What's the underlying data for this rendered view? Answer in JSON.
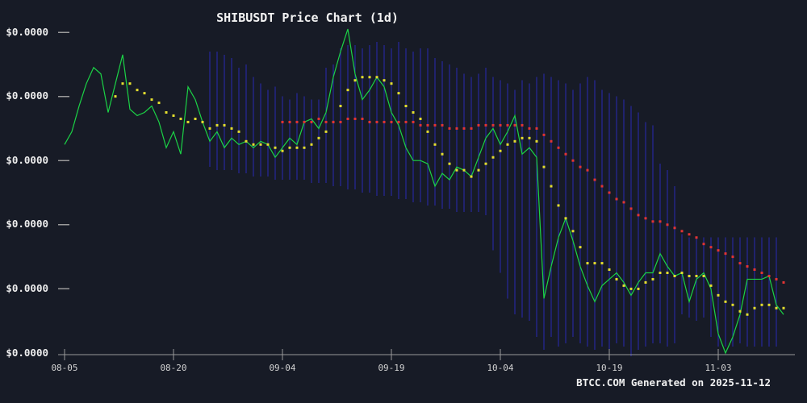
{
  "page": {
    "footer": "BTCC.COM Generated on 2025-11-12"
  },
  "colors": {
    "background": "#171b26",
    "price_line": "#1bd346",
    "ma_fast_dots": "#e3de2f",
    "ma_slow_dots": "#e23434",
    "volume_bars": "#2a2ab4",
    "axis": "#9a9a9a",
    "tick_text": "#d2d2d2",
    "text": "#f2f2f2"
  },
  "chart_data": {
    "type": "line",
    "title": "SHIBUSDT Price Chart (1d)",
    "symbol": "SHIBUSDT",
    "interval": "1d",
    "value_scale": "percent-of-plot-height (0 = bottom axis tick, 100 = top tick; all price tick labels render as $0.0000)",
    "x_axis": {
      "tick_labels": [
        "08-05",
        "08-20",
        "09-04",
        "09-19",
        "10-04",
        "10-19",
        "11-03"
      ],
      "points_per_tick": 15,
      "n_points": 100
    },
    "y_axis": {
      "tick_labels": [
        "$0.0000",
        "$0.0000",
        "$0.0000",
        "$0.0000",
        "$0.0000",
        "$0.0000"
      ],
      "tick_values": [
        100,
        80,
        60,
        40,
        20,
        0
      ],
      "unit": "USD"
    },
    "series": [
      {
        "name": "volume",
        "style": "vbars",
        "color": "#2a2ab4",
        "start_index": 20,
        "tops": [
          94,
          94,
          93,
          92,
          89,
          90,
          86,
          84,
          82,
          83,
          80,
          79,
          81,
          80,
          79,
          79,
          89,
          90,
          95,
          96,
          96,
          95,
          96,
          97,
          96,
          95,
          97,
          95,
          94,
          95,
          95,
          92,
          91,
          90,
          89,
          87,
          86,
          87,
          89,
          86,
          85,
          84,
          82,
          85,
          84,
          86,
          87,
          86,
          85,
          84,
          82,
          84,
          86,
          85,
          82,
          81,
          80,
          79,
          77,
          75,
          72,
          71,
          59,
          57,
          52,
          37,
          36,
          36,
          36,
          36,
          36,
          36,
          36,
          36,
          36,
          36,
          36,
          36,
          36
        ],
        "bottoms": [
          58,
          57,
          57,
          57,
          56,
          56,
          55,
          55,
          55,
          54,
          54,
          54,
          54,
          54,
          53,
          53,
          53,
          52,
          52,
          51,
          51,
          50,
          50,
          49,
          49,
          49,
          48,
          48,
          47,
          47,
          46,
          46,
          45,
          45,
          44,
          44,
          44,
          44,
          43,
          32,
          25,
          17,
          12,
          11,
          10,
          5,
          1,
          5,
          2,
          3,
          5,
          3,
          2,
          1,
          2,
          1,
          3,
          2,
          -1,
          1,
          2,
          3,
          3,
          2,
          3,
          12,
          11,
          10,
          11,
          5,
          2,
          2,
          2,
          3,
          2,
          2,
          2,
          2,
          2
        ]
      },
      {
        "name": "price_close",
        "style": "line",
        "color": "#1bd346",
        "start_index": 0,
        "values": [
          65,
          69,
          77,
          84,
          89,
          87,
          75,
          84,
          93,
          76,
          74,
          75,
          77,
          72,
          64,
          69,
          62,
          83,
          79,
          72,
          66,
          69,
          64,
          67,
          65,
          66,
          64,
          66,
          65,
          61,
          64,
          67,
          65,
          72,
          73,
          70,
          75,
          86,
          94,
          101,
          87,
          79,
          82,
          86,
          83,
          75,
          71,
          64,
          60,
          60,
          59,
          52,
          56,
          54,
          58,
          57,
          55,
          61,
          67,
          70,
          65,
          69,
          74,
          62,
          64,
          61,
          17,
          27,
          36,
          42,
          35,
          27,
          21,
          16,
          21,
          23,
          25,
          22,
          18,
          22,
          25,
          25,
          31,
          27,
          24,
          25,
          16,
          23,
          25,
          20,
          6,
          0,
          5,
          12,
          23,
          23,
          23,
          24,
          15,
          12
        ]
      },
      {
        "name": "ma_fast",
        "style": "dots",
        "color": "#e3de2f",
        "start_index": 7,
        "values": [
          80,
          84,
          84,
          82,
          81,
          79,
          78,
          75,
          74,
          73,
          72,
          73,
          72,
          70,
          71,
          71,
          70,
          69,
          66,
          65,
          65,
          65,
          64,
          63,
          64,
          64,
          64,
          65,
          67,
          69,
          72,
          77,
          82,
          85,
          86,
          86,
          86,
          85,
          84,
          81,
          77,
          75,
          73,
          69,
          65,
          62,
          59,
          57,
          57,
          55,
          57,
          59,
          61,
          63,
          65,
          66,
          67,
          67,
          66,
          58,
          52,
          46,
          42,
          38,
          33,
          28,
          28,
          28,
          26,
          23,
          21,
          20,
          20,
          22,
          23,
          25,
          25,
          24,
          25,
          24,
          24,
          24,
          21,
          18,
          16,
          15,
          13,
          12,
          14,
          15,
          15,
          14,
          14
        ]
      },
      {
        "name": "ma_slow",
        "style": "dots",
        "color": "#e23434",
        "start_index": 30,
        "values": [
          72,
          72,
          72,
          72,
          72,
          73,
          72,
          72,
          72,
          73,
          73,
          73,
          72,
          72,
          72,
          72,
          72,
          72,
          72,
          71,
          71,
          71,
          71,
          70,
          70,
          70,
          70,
          71,
          71,
          71,
          71,
          71,
          71,
          71,
          70,
          70,
          68,
          66,
          64,
          62,
          60,
          58,
          57,
          54,
          52,
          50,
          48,
          47,
          45,
          43,
          42,
          41,
          41,
          40,
          39,
          38,
          37,
          36,
          34,
          33,
          32,
          31,
          30,
          28,
          27,
          26,
          25,
          24,
          23,
          22
        ]
      }
    ]
  }
}
